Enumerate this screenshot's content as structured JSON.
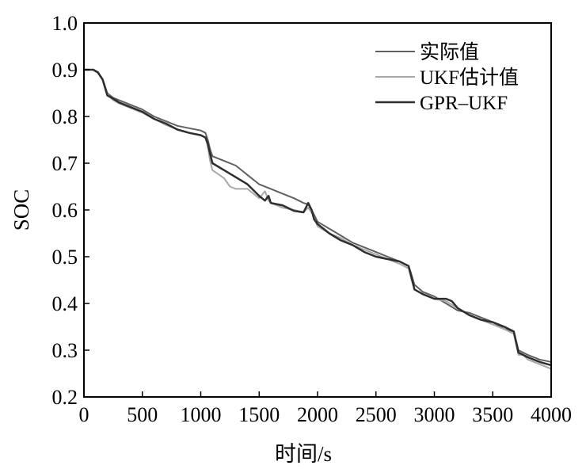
{
  "chart_data": {
    "type": "line",
    "xlabel": "时间/s",
    "ylabel": "SOC",
    "xlim": [
      0,
      4000
    ],
    "ylim": [
      0.2,
      1.0
    ],
    "xticks": [
      0,
      500,
      1000,
      1500,
      2000,
      2500,
      3000,
      3500,
      4000
    ],
    "yticks": [
      0.2,
      0.3,
      0.4,
      0.5,
      0.6,
      0.7,
      0.8,
      0.9,
      1.0
    ],
    "ytick_labels": [
      "0.2",
      "0.3",
      "0.4",
      "0.5",
      "0.6",
      "0.7",
      "0.8",
      "0.9",
      "1.0"
    ],
    "grid": false,
    "legend_position": "top-right",
    "series": [
      {
        "name": "实际值",
        "color": "#606060",
        "x": [
          0,
          80,
          120,
          160,
          200,
          250,
          300,
          400,
          500,
          600,
          700,
          800,
          900,
          1000,
          1040,
          1060,
          1080,
          1100,
          1200,
          1300,
          1400,
          1500,
          1600,
          1700,
          1800,
          1880,
          1920,
          1960,
          2000,
          2100,
          2200,
          2300,
          2400,
          2500,
          2600,
          2700,
          2780,
          2800,
          2830,
          2900,
          3000,
          3100,
          3200,
          3300,
          3400,
          3500,
          3600,
          3680,
          3720,
          3760,
          3800,
          3900,
          4000
        ],
        "y": [
          0.9,
          0.9,
          0.895,
          0.88,
          0.85,
          0.84,
          0.835,
          0.825,
          0.815,
          0.8,
          0.79,
          0.78,
          0.775,
          0.77,
          0.765,
          0.75,
          0.73,
          0.715,
          0.705,
          0.695,
          0.675,
          0.655,
          0.645,
          0.635,
          0.625,
          0.615,
          0.612,
          0.595,
          0.575,
          0.56,
          0.545,
          0.53,
          0.52,
          0.51,
          0.5,
          0.49,
          0.48,
          0.465,
          0.44,
          0.425,
          0.415,
          0.4,
          0.385,
          0.38,
          0.37,
          0.36,
          0.345,
          0.34,
          0.3,
          0.295,
          0.29,
          0.28,
          0.275
        ]
      },
      {
        "name": "UKF估计值",
        "color": "#a8a8a8",
        "x": [
          0,
          80,
          120,
          160,
          200,
          250,
          300,
          400,
          500,
          600,
          700,
          800,
          900,
          1000,
          1040,
          1060,
          1080,
          1100,
          1200,
          1250,
          1300,
          1400,
          1500,
          1550,
          1580,
          1600,
          1700,
          1800,
          1880,
          1920,
          1960,
          2000,
          2100,
          2200,
          2300,
          2400,
          2500,
          2600,
          2700,
          2780,
          2800,
          2830,
          2900,
          3000,
          3100,
          3200,
          3300,
          3400,
          3500,
          3600,
          3680,
          3720,
          3760,
          3800,
          3900,
          4000
        ],
        "y": [
          0.9,
          0.9,
          0.893,
          0.878,
          0.848,
          0.835,
          0.828,
          0.818,
          0.808,
          0.795,
          0.782,
          0.772,
          0.765,
          0.76,
          0.755,
          0.735,
          0.705,
          0.685,
          0.668,
          0.65,
          0.645,
          0.645,
          0.625,
          0.64,
          0.62,
          0.615,
          0.605,
          0.6,
          0.595,
          0.605,
          0.59,
          0.565,
          0.55,
          0.54,
          0.525,
          0.515,
          0.505,
          0.495,
          0.485,
          0.475,
          0.455,
          0.43,
          0.42,
          0.41,
          0.405,
          0.39,
          0.375,
          0.365,
          0.355,
          0.345,
          0.335,
          0.29,
          0.29,
          0.28,
          0.27,
          0.26
        ]
      },
      {
        "name": "GPR–UKF",
        "color": "#2e2e2e",
        "x": [
          0,
          80,
          120,
          160,
          200,
          250,
          300,
          400,
          500,
          600,
          700,
          800,
          900,
          1000,
          1040,
          1060,
          1080,
          1100,
          1200,
          1300,
          1400,
          1500,
          1550,
          1580,
          1600,
          1700,
          1800,
          1880,
          1920,
          1950,
          1970,
          2000,
          2100,
          2200,
          2300,
          2400,
          2500,
          2600,
          2700,
          2780,
          2800,
          2830,
          2900,
          3000,
          3100,
          3150,
          3200,
          3300,
          3400,
          3500,
          3600,
          3680,
          3720,
          3760,
          3800,
          3900,
          4000
        ],
        "y": [
          0.9,
          0.9,
          0.894,
          0.879,
          0.845,
          0.838,
          0.83,
          0.82,
          0.81,
          0.795,
          0.785,
          0.772,
          0.765,
          0.76,
          0.755,
          0.742,
          0.72,
          0.7,
          0.685,
          0.67,
          0.655,
          0.63,
          0.62,
          0.63,
          0.615,
          0.61,
          0.598,
          0.595,
          0.615,
          0.6,
          0.58,
          0.57,
          0.55,
          0.535,
          0.525,
          0.51,
          0.5,
          0.495,
          0.49,
          0.48,
          0.46,
          0.43,
          0.42,
          0.41,
          0.41,
          0.405,
          0.39,
          0.375,
          0.365,
          0.36,
          0.35,
          0.34,
          0.295,
          0.29,
          0.285,
          0.275,
          0.268
        ]
      }
    ]
  }
}
